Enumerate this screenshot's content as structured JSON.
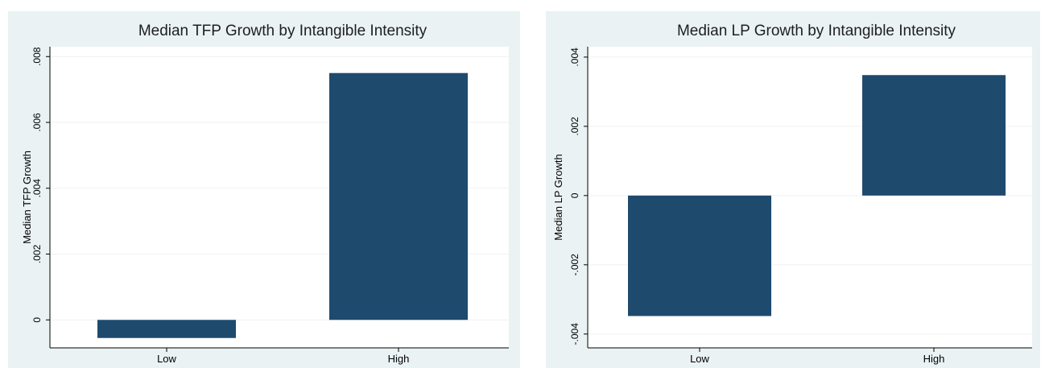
{
  "chart_data": [
    {
      "type": "bar",
      "title": "Median TFP Growth by Intangible Intensity",
      "xlabel": "",
      "ylabel": "Median TFP Growth",
      "categories": [
        "Low",
        "High"
      ],
      "values": [
        -0.00055,
        0.0075
      ],
      "ylim": [
        -0.00085,
        0.0083
      ],
      "yticks": [
        0,
        0.002,
        0.004,
        0.006,
        0.008
      ],
      "ytick_labels": [
        "0",
        ".002",
        ".004",
        ".006",
        ".008"
      ],
      "grid": true,
      "bar_color": "#1e4a6e",
      "background_color": "#eaf2f3"
    },
    {
      "type": "bar",
      "title": "Median LP Growth by Intangible Intensity",
      "xlabel": "",
      "ylabel": "Median LP Growth",
      "categories": [
        "Low",
        "High"
      ],
      "values": [
        -0.00348,
        0.00348
      ],
      "ylim": [
        -0.0044,
        0.0043
      ],
      "yticks": [
        -0.004,
        -0.002,
        0,
        0.002,
        0.004
      ],
      "ytick_labels": [
        "-.004",
        "-.002",
        "0",
        ".002",
        ".004"
      ],
      "grid": true,
      "bar_color": "#1e4a6e",
      "background_color": "#eaf2f3"
    }
  ]
}
